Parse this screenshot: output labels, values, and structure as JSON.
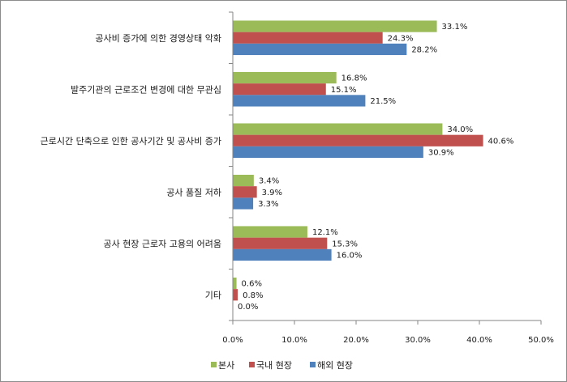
{
  "chart_data": {
    "type": "bar",
    "orientation": "horizontal",
    "categories": [
      "공사비 증가에 의한 경영상태 악화",
      "발주기관의 근로조건 변경에 대한 무관심",
      "근로시간 단축으로 인한 공사기간 및 공사비 증가",
      "공사 품질 저하",
      "공사 현장 근로자 고용의 어려움",
      "기타"
    ],
    "series": [
      {
        "name": "본사",
        "color": "#9bbb59",
        "values": [
          33.1,
          16.8,
          34.0,
          3.4,
          12.1,
          0.6
        ]
      },
      {
        "name": "국내 현장",
        "color": "#c0504d",
        "values": [
          24.3,
          15.1,
          40.6,
          3.9,
          15.3,
          0.8
        ]
      },
      {
        "name": "해외 현장",
        "color": "#4f81bd",
        "values": [
          28.2,
          21.5,
          30.9,
          3.3,
          16.0,
          0.0
        ]
      }
    ],
    "xlim": [
      0,
      50
    ],
    "xticks": [
      0,
      10,
      20,
      30,
      40,
      50
    ],
    "tick_format": "%.1f%",
    "title": "",
    "xlabel": "",
    "ylabel": "",
    "grid": false,
    "legend_position": "bottom"
  }
}
